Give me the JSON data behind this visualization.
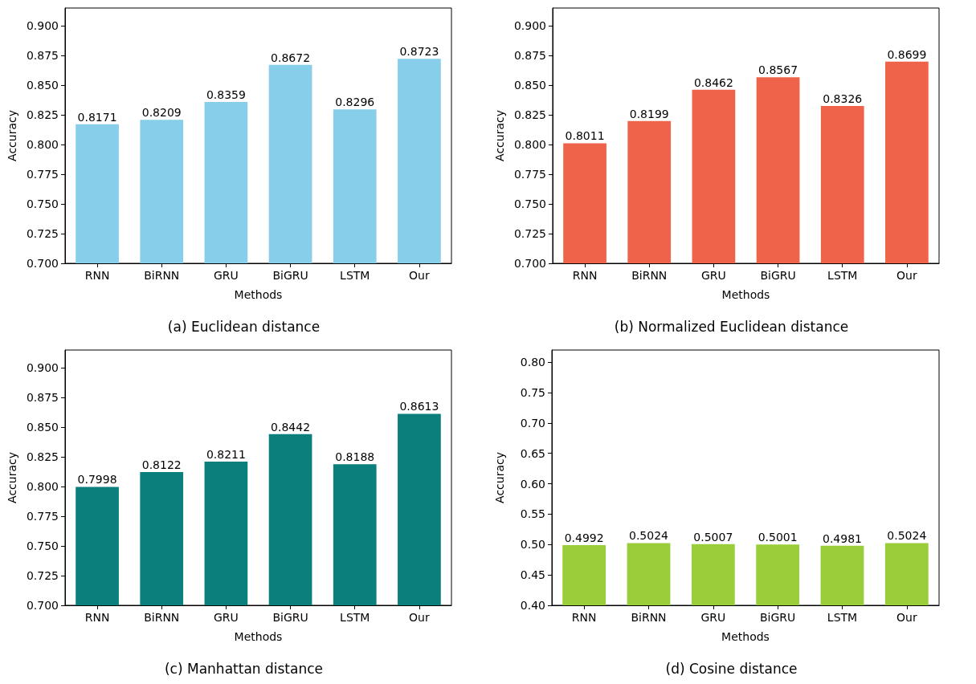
{
  "chart_data": [
    {
      "type": "bar",
      "title": "(a) Euclidean distance",
      "xlabel": "Methods",
      "ylabel": "Accuracy",
      "categories": [
        "RNN",
        "BiRNN",
        "GRU",
        "BiGRU",
        "LSTM",
        "Our"
      ],
      "values": [
        0.8171,
        0.8209,
        0.8359,
        0.8672,
        0.8296,
        0.8723
      ],
      "color": "#87ceeb",
      "ylim": [
        0.7,
        0.915
      ],
      "yticks": [
        {
          "value": 0.7,
          "label": "0.700"
        },
        {
          "value": 0.725,
          "label": "0.725"
        },
        {
          "value": 0.75,
          "label": "0.750"
        },
        {
          "value": 0.775,
          "label": "0.775"
        },
        {
          "value": 0.8,
          "label": "0.800"
        },
        {
          "value": 0.825,
          "label": "0.825"
        },
        {
          "value": 0.85,
          "label": "0.850"
        },
        {
          "value": 0.875,
          "label": "0.875"
        },
        {
          "value": 0.9,
          "label": "0.900"
        }
      ],
      "data_labels": true
    },
    {
      "type": "bar",
      "title": "(b) Normalized Euclidean distance",
      "xlabel": "Methods",
      "ylabel": "Accuracy",
      "categories": [
        "RNN",
        "BiRNN",
        "GRU",
        "BiGRU",
        "LSTM",
        "Our"
      ],
      "values": [
        0.8011,
        0.8199,
        0.8462,
        0.8567,
        0.8326,
        0.8699
      ],
      "color": "#ee6349",
      "ylim": [
        0.7,
        0.915
      ],
      "yticks": [
        {
          "value": 0.7,
          "label": "0.700"
        },
        {
          "value": 0.725,
          "label": "0.725"
        },
        {
          "value": 0.75,
          "label": "0.750"
        },
        {
          "value": 0.775,
          "label": "0.775"
        },
        {
          "value": 0.8,
          "label": "0.800"
        },
        {
          "value": 0.825,
          "label": "0.825"
        },
        {
          "value": 0.85,
          "label": "0.850"
        },
        {
          "value": 0.875,
          "label": "0.875"
        },
        {
          "value": 0.9,
          "label": "0.900"
        }
      ],
      "data_labels": true
    },
    {
      "type": "bar",
      "title": "(c) Manhattan distance",
      "xlabel": "Methods",
      "ylabel": "Accuracy",
      "categories": [
        "RNN",
        "BiRNN",
        "GRU",
        "BiGRU",
        "LSTM",
        "Our"
      ],
      "values": [
        0.7998,
        0.8122,
        0.8211,
        0.8442,
        0.8188,
        0.8613
      ],
      "color": "#0a7f7c",
      "ylim": [
        0.7,
        0.915
      ],
      "yticks": [
        {
          "value": 0.7,
          "label": "0.700"
        },
        {
          "value": 0.725,
          "label": "0.725"
        },
        {
          "value": 0.75,
          "label": "0.750"
        },
        {
          "value": 0.775,
          "label": "0.775"
        },
        {
          "value": 0.8,
          "label": "0.800"
        },
        {
          "value": 0.825,
          "label": "0.825"
        },
        {
          "value": 0.85,
          "label": "0.850"
        },
        {
          "value": 0.875,
          "label": "0.875"
        },
        {
          "value": 0.9,
          "label": "0.900"
        }
      ],
      "data_labels": true
    },
    {
      "type": "bar",
      "title": "(d) Cosine distance",
      "xlabel": "Methods",
      "ylabel": "Accuracy",
      "categories": [
        "RNN",
        "BiRNN",
        "GRU",
        "BiGRU",
        "LSTM",
        "Our"
      ],
      "values": [
        0.4992,
        0.5024,
        0.5007,
        0.5001,
        0.4981,
        0.5024
      ],
      "color": "#9acd3a",
      "ylim": [
        0.4,
        0.82
      ],
      "yticks": [
        {
          "value": 0.4,
          "label": "0.40"
        },
        {
          "value": 0.45,
          "label": "0.45"
        },
        {
          "value": 0.5,
          "label": "0.50"
        },
        {
          "value": 0.55,
          "label": "0.55"
        },
        {
          "value": 0.6,
          "label": "0.60"
        },
        {
          "value": 0.65,
          "label": "0.65"
        },
        {
          "value": 0.7,
          "label": "0.70"
        },
        {
          "value": 0.75,
          "label": "0.75"
        },
        {
          "value": 0.8,
          "label": "0.80"
        }
      ],
      "data_labels": true
    }
  ]
}
